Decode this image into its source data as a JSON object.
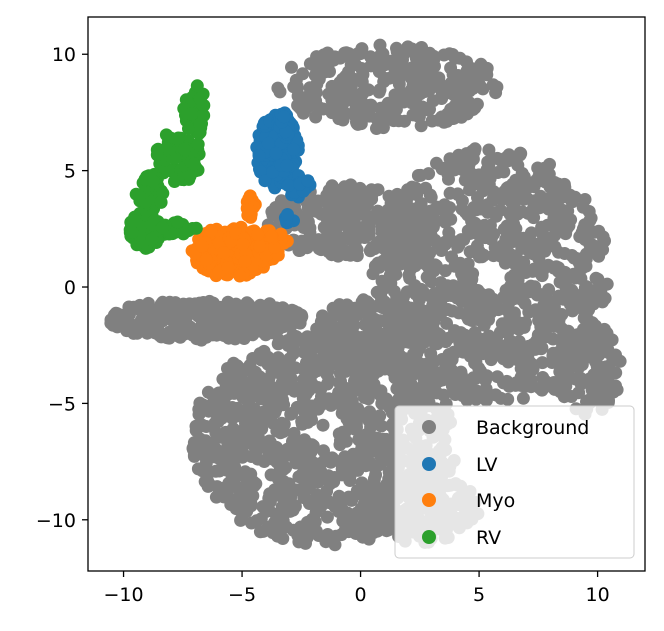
{
  "chart_data": {
    "type": "scatter",
    "title": "",
    "xlabel": "",
    "ylabel": "",
    "xlim": [
      -11.5,
      12.0
    ],
    "ylim": [
      -12.2,
      11.6
    ],
    "xticks": [
      -10,
      -5,
      0,
      5,
      10
    ],
    "yticks": [
      -10,
      -5,
      0,
      5,
      10
    ],
    "xtick_labels": [
      "−10",
      "−5",
      "0",
      "5",
      "10"
    ],
    "ytick_labels": [
      "−10",
      "−5",
      "0",
      "5",
      "10"
    ],
    "grid": false,
    "legend_position": "bottom-right",
    "series": [
      {
        "name": "Background",
        "color": "#808080",
        "regions": [
          {
            "shape": "ellipse",
            "cx": 5.5,
            "cy": 0.5,
            "rx": 5.0,
            "ry": 5.5,
            "n": 900,
            "ring": [
              0.15,
              1.0
            ]
          },
          {
            "shape": "ellipse",
            "cx": -1.5,
            "cy": -6.5,
            "rx": 5.6,
            "ry": 4.6,
            "n": 900,
            "ring": [
              0.1,
              1.0
            ]
          },
          {
            "shape": "ellipse",
            "cx": 1.2,
            "cy": 8.6,
            "rx": 4.7,
            "ry": 1.8,
            "n": 300,
            "ring": [
              0.1,
              1.0
            ]
          },
          {
            "shape": "ellipse",
            "cx": -0.5,
            "cy": 2.8,
            "rx": 3.5,
            "ry": 1.6,
            "n": 260,
            "ring": [
              0.0,
              1.0
            ]
          },
          {
            "shape": "ellipse",
            "cx": -6.5,
            "cy": -1.4,
            "rx": 4.1,
            "ry": 0.9,
            "n": 240,
            "ring": [
              0.0,
              1.0
            ]
          },
          {
            "shape": "ellipse",
            "cx": 0.5,
            "cy": -2.0,
            "rx": 2.5,
            "ry": 1.5,
            "n": 160,
            "ring": [
              0.0,
              1.0
            ]
          },
          {
            "shape": "ellipse",
            "cx": 9.5,
            "cy": -3.5,
            "rx": 1.5,
            "ry": 2.0,
            "n": 120,
            "ring": [
              0.0,
              1.0
            ]
          },
          {
            "shape": "ellipse",
            "cx": 2.5,
            "cy": -9.5,
            "rx": 2.5,
            "ry": 1.5,
            "n": 120,
            "ring": [
              0.0,
              1.0
            ]
          }
        ]
      },
      {
        "name": "LV",
        "color": "#1f77b4",
        "regions": [
          {
            "shape": "ellipse",
            "cx": -3.5,
            "cy": 5.8,
            "rx": 0.9,
            "ry": 1.6,
            "n": 150,
            "ring": [
              0.0,
              1.0
            ]
          },
          {
            "shape": "ellipse",
            "cx": -3.2,
            "cy": 7.0,
            "rx": 0.3,
            "ry": 0.5,
            "n": 20,
            "ring": [
              0.0,
              1.0
            ]
          },
          {
            "shape": "ellipse",
            "cx": -2.6,
            "cy": 4.3,
            "rx": 0.5,
            "ry": 0.5,
            "n": 20,
            "ring": [
              0.0,
              1.0
            ]
          },
          {
            "shape": "ellipse",
            "cx": -3.0,
            "cy": 3.0,
            "rx": 0.2,
            "ry": 0.3,
            "n": 6,
            "ring": [
              0.0,
              1.0
            ]
          }
        ]
      },
      {
        "name": "Myo",
        "color": "#ff7f0e",
        "regions": [
          {
            "shape": "ellipse",
            "cx": -5.4,
            "cy": 1.5,
            "rx": 1.8,
            "ry": 1.1,
            "n": 200,
            "ring": [
              0.0,
              1.0
            ]
          },
          {
            "shape": "ellipse",
            "cx": -4.6,
            "cy": 3.4,
            "rx": 0.2,
            "ry": 0.6,
            "n": 20,
            "ring": [
              0.0,
              1.0
            ]
          },
          {
            "shape": "ellipse",
            "cx": -3.8,
            "cy": 1.9,
            "rx": 0.8,
            "ry": 0.6,
            "n": 30,
            "ring": [
              0.0,
              1.0
            ]
          }
        ]
      },
      {
        "name": "RV",
        "color": "#2ca02c",
        "regions": [
          {
            "shape": "ellipse",
            "cx": -7.0,
            "cy": 7.6,
            "rx": 0.5,
            "ry": 1.1,
            "n": 40,
            "ring": [
              0.0,
              1.0
            ]
          },
          {
            "shape": "ellipse",
            "cx": -7.7,
            "cy": 5.6,
            "rx": 1.0,
            "ry": 1.1,
            "n": 80,
            "ring": [
              0.0,
              1.0
            ]
          },
          {
            "shape": "ellipse",
            "cx": -8.9,
            "cy": 4.0,
            "rx": 0.6,
            "ry": 0.9,
            "n": 50,
            "ring": [
              0.0,
              1.0
            ]
          },
          {
            "shape": "ellipse",
            "cx": -9.1,
            "cy": 2.4,
            "rx": 0.7,
            "ry": 0.8,
            "n": 70,
            "ring": [
              0.0,
              1.0
            ]
          },
          {
            "shape": "ellipse",
            "cx": -7.8,
            "cy": 2.5,
            "rx": 0.9,
            "ry": 0.3,
            "n": 30,
            "ring": [
              0.0,
              1.0
            ]
          }
        ]
      }
    ]
  }
}
